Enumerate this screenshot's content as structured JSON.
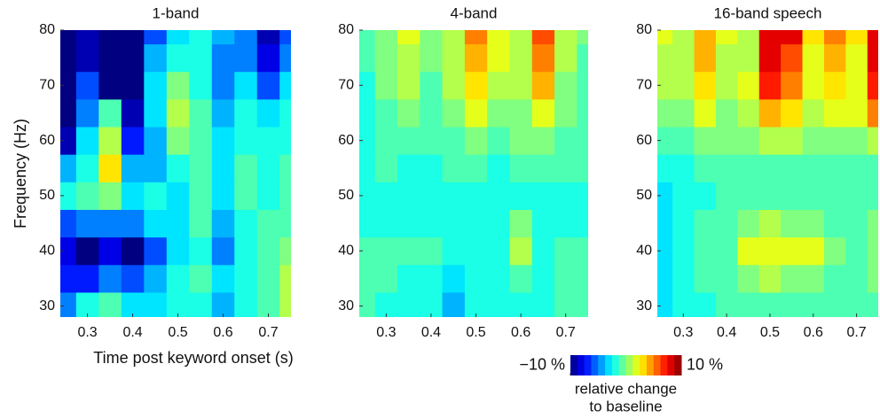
{
  "chart_data": [
    {
      "type": "heatmap",
      "title": "1-band",
      "xlabel": "Time post keyword onset (s)",
      "ylabel": "Frequency (Hz)",
      "colormap": "jet",
      "x": [
        0.25,
        0.3,
        0.35,
        0.4,
        0.45,
        0.5,
        0.55,
        0.6,
        0.65,
        0.7,
        0.75
      ],
      "y": [
        30,
        35,
        40,
        45,
        50,
        55,
        60,
        65,
        70,
        75,
        80
      ],
      "values": [
        [
          -5,
          -2,
          -1,
          -3,
          -3,
          -2,
          -2,
          -4,
          -2,
          -1,
          1
        ],
        [
          -7,
          -7,
          -5,
          -6,
          -4,
          -2,
          -1,
          -3,
          -2,
          -1,
          1
        ],
        [
          -8,
          -10,
          -8,
          -10,
          -6,
          -3,
          -2,
          -5,
          -2,
          -1,
          0
        ],
        [
          -6,
          -5,
          -5,
          -5,
          -3,
          -3,
          -1,
          -4,
          -2,
          -1,
          -1
        ],
        [
          -2,
          -1,
          0,
          -3,
          -2,
          -3,
          -1,
          -3,
          -1,
          -2,
          -1
        ],
        [
          -4,
          -2,
          3,
          -4,
          -4,
          -2,
          -1,
          -3,
          -1,
          -2,
          -1
        ],
        [
          -9,
          -3,
          1,
          -7,
          -4,
          0,
          -1,
          -3,
          -2,
          -2,
          -2
        ],
        [
          -10,
          -5,
          -1,
          -9,
          -3,
          1,
          -1,
          -4,
          -2,
          -3,
          -2
        ],
        [
          -10,
          -6,
          -10,
          -10,
          -3,
          0,
          -2,
          -5,
          -3,
          -6,
          -3
        ],
        [
          -10,
          -9,
          -10,
          -10,
          -4,
          -2,
          -2,
          -5,
          -5,
          -8,
          -5
        ],
        [
          -10,
          -9,
          -10,
          -10,
          -6,
          -3,
          -2,
          -4,
          -5,
          -9,
          -6
        ]
      ],
      "xlim": [
        0.24,
        0.75
      ],
      "ylim": [
        28,
        80
      ],
      "xticks": [
        0.3,
        0.4,
        0.5,
        0.6,
        0.7
      ],
      "yticks": [
        30,
        40,
        50,
        60,
        70,
        80
      ],
      "colorbar": {
        "lim": [
          -10,
          10
        ],
        "ticks": [
          {
            "value": -10,
            "label": "−10 %"
          },
          {
            "value": 10,
            "label": "10 %"
          }
        ],
        "label": [
          "relative change",
          "to baseline"
        ]
      }
    },
    {
      "type": "heatmap",
      "title": "4-band",
      "colormap": "jet",
      "x": [
        0.25,
        0.3,
        0.35,
        0.4,
        0.45,
        0.5,
        0.55,
        0.6,
        0.65,
        0.7,
        0.75
      ],
      "y": [
        30,
        35,
        40,
        45,
        50,
        55,
        60,
        65,
        70,
        75,
        80
      ],
      "values": [
        [
          -1,
          -2,
          -2,
          -2,
          -4,
          -2,
          -2,
          -2,
          -2,
          -1,
          -1
        ],
        [
          -1,
          -1,
          -2,
          -2,
          -3,
          -2,
          -2,
          -1,
          -2,
          -1,
          -1
        ],
        [
          -1,
          -1,
          -1,
          -1,
          -2,
          -2,
          -2,
          1,
          -2,
          -1,
          -1
        ],
        [
          -2,
          -2,
          -2,
          -2,
          -2,
          -2,
          -2,
          0,
          -2,
          -2,
          -2
        ],
        [
          -2,
          -2,
          -2,
          -2,
          -2,
          -2,
          -2,
          -2,
          -2,
          -2,
          -2
        ],
        [
          -2,
          -1,
          -2,
          -2,
          -1,
          -1,
          -2,
          -1,
          -1,
          -1,
          -1
        ],
        [
          -2,
          -1,
          -1,
          -1,
          -1,
          0,
          -1,
          0,
          0,
          -1,
          -1
        ],
        [
          -2,
          -1,
          0,
          -1,
          0,
          2,
          0,
          0,
          2,
          0,
          -1
        ],
        [
          -2,
          0,
          1,
          -1,
          1,
          3,
          1,
          1,
          4,
          0,
          -1
        ],
        [
          -1,
          0,
          1,
          0,
          1,
          4,
          2,
          1,
          5,
          1,
          -1
        ],
        [
          -1,
          0,
          2,
          0,
          1,
          5,
          2,
          1,
          6,
          1,
          0
        ]
      ],
      "xlim": [
        0.24,
        0.75
      ],
      "ylim": [
        28,
        80
      ],
      "xticks": [
        0.3,
        0.4,
        0.5,
        0.6,
        0.7
      ],
      "yticks": [
        30,
        40,
        50,
        60,
        70,
        80
      ]
    },
    {
      "type": "heatmap",
      "title": "16-band speech",
      "colormap": "jet",
      "x": [
        0.25,
        0.3,
        0.35,
        0.4,
        0.45,
        0.5,
        0.55,
        0.6,
        0.65,
        0.7,
        0.75
      ],
      "y": [
        30,
        35,
        40,
        45,
        50,
        55,
        60,
        65,
        70,
        75,
        80
      ],
      "values": [
        [
          -3,
          -2,
          -2,
          -1,
          -1,
          -1,
          -1,
          -1,
          -1,
          -1,
          -1
        ],
        [
          -3,
          -2,
          -1,
          -1,
          0,
          1,
          0,
          0,
          -1,
          -1,
          0
        ],
        [
          -3,
          -2,
          -1,
          -1,
          2,
          2,
          2,
          2,
          0,
          -1,
          0
        ],
        [
          -3,
          -2,
          -1,
          -1,
          0,
          1,
          0,
          0,
          -1,
          -1,
          0
        ],
        [
          -3,
          -2,
          -2,
          -1,
          -1,
          -1,
          -1,
          -1,
          -1,
          -1,
          -1
        ],
        [
          -2,
          -2,
          -1,
          -1,
          -1,
          -1,
          -1,
          -1,
          -1,
          -1,
          -1
        ],
        [
          -1,
          -1,
          0,
          0,
          0,
          1,
          1,
          0,
          0,
          0,
          1
        ],
        [
          0,
          0,
          2,
          0,
          1,
          4,
          3,
          1,
          2,
          2,
          5
        ],
        [
          1,
          1,
          3,
          1,
          2,
          7,
          5,
          2,
          3,
          2,
          7
        ],
        [
          1,
          1,
          4,
          1,
          1,
          8,
          6,
          2,
          4,
          2,
          8
        ],
        [
          2,
          1,
          4,
          2,
          1,
          8,
          8,
          3,
          5,
          3,
          8
        ]
      ],
      "xlim": [
        0.24,
        0.75
      ],
      "ylim": [
        28,
        80
      ],
      "xticks": [
        0.3,
        0.4,
        0.5,
        0.6,
        0.7
      ],
      "yticks": [
        30,
        40,
        50,
        60,
        70,
        80
      ]
    }
  ]
}
